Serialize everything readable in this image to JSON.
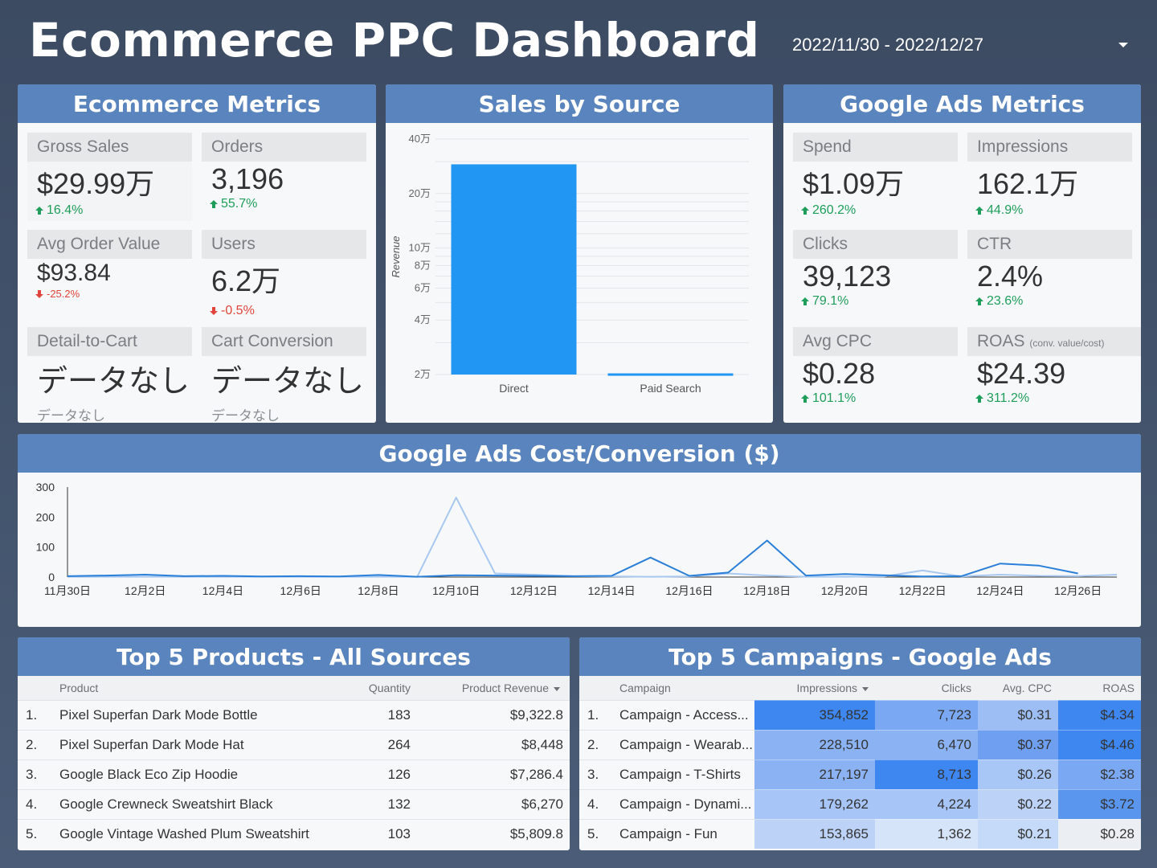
{
  "header": {
    "title": "Ecommerce PPC Dashboard",
    "date_range": "2022/11/30 - 2022/12/27"
  },
  "ecommerce": {
    "title": "Ecommerce Metrics",
    "gross_sales": {
      "label": "Gross Sales",
      "value": "$29.99万",
      "delta": "16.4%",
      "trend": "up"
    },
    "orders": {
      "label": "Orders",
      "value": "3,196",
      "delta": "55.7%",
      "trend": "up"
    },
    "aov": {
      "label": "Avg Order Value",
      "value": "$93.84",
      "delta": "-25.2%",
      "trend": "down"
    },
    "users": {
      "label": "Users",
      "value": "6.2万",
      "delta": "-0.5%",
      "trend": "down"
    },
    "detail_to_cart": {
      "label": "Detail-to-Cart",
      "value": "データなし",
      "sub": "データなし"
    },
    "cart_conversion": {
      "label": "Cart Conversion",
      "value": "データなし",
      "sub": "データなし"
    }
  },
  "sales_by_source": {
    "title": "Sales by Source"
  },
  "google_ads": {
    "title": "Google Ads Metrics",
    "spend": {
      "label": "Spend",
      "value": "$1.09万",
      "delta": "260.2%",
      "trend": "up"
    },
    "impressions": {
      "label": "Impressions",
      "value": "162.1万",
      "delta": "44.9%",
      "trend": "up"
    },
    "clicks": {
      "label": "Clicks",
      "value": "39,123",
      "delta": "79.1%",
      "trend": "up"
    },
    "ctr": {
      "label": "CTR",
      "value": "2.4%",
      "delta": "23.6%",
      "trend": "up"
    },
    "avg_cpc": {
      "label": "Avg CPC",
      "value": "$0.28",
      "delta": "101.1%",
      "trend": "up"
    },
    "roas": {
      "label": "ROAS",
      "label_note": "(conv. value/cost)",
      "value": "$24.39",
      "delta": "311.2%",
      "trend": "up"
    }
  },
  "cost_conversion": {
    "title": "Google Ads  Cost/Conversion ($)"
  },
  "top_products": {
    "title": "Top 5 Products - All Sources",
    "columns": [
      "Product",
      "Quantity",
      "Product Revenue"
    ],
    "rows": [
      {
        "idx": "1.",
        "name": "Pixel Superfan Dark Mode Bottle",
        "qty": "183",
        "rev": "$9,322.8"
      },
      {
        "idx": "2.",
        "name": "Pixel Superfan Dark Mode Hat",
        "qty": "264",
        "rev": "$8,448"
      },
      {
        "idx": "3.",
        "name": "Google Black Eco Zip Hoodie",
        "qty": "126",
        "rev": "$7,286.4"
      },
      {
        "idx": "4.",
        "name": "Google Crewneck Sweatshirt Black",
        "qty": "132",
        "rev": "$6,270"
      },
      {
        "idx": "5.",
        "name": "Google Vintage Washed Plum Sweatshirt",
        "qty": "103",
        "rev": "$5,809.8"
      }
    ]
  },
  "top_campaigns": {
    "title": "Top 5 Campaigns - Google Ads",
    "columns": [
      "Campaign",
      "Impressions",
      "Clicks",
      "Avg. CPC",
      "ROAS"
    ],
    "rows": [
      {
        "idx": "1.",
        "name": "Campaign - Access...",
        "imp": "354,852",
        "clicks": "7,723",
        "cpc": "$0.31",
        "roas": "$4.34"
      },
      {
        "idx": "2.",
        "name": "Campaign - Wearab...",
        "imp": "228,510",
        "clicks": "6,470",
        "cpc": "$0.37",
        "roas": "$4.46"
      },
      {
        "idx": "3.",
        "name": "Campaign - T-Shirts",
        "imp": "217,197",
        "clicks": "8,713",
        "cpc": "$0.26",
        "roas": "$2.38"
      },
      {
        "idx": "4.",
        "name": "Campaign - Dynami...",
        "imp": "179,262",
        "clicks": "4,224",
        "cpc": "$0.22",
        "roas": "$3.72"
      },
      {
        "idx": "5.",
        "name": "Campaign - Fun",
        "imp": "153,865",
        "clicks": "1,362",
        "cpc": "$0.21",
        "roas": "$0.28"
      }
    ],
    "heat_colors": {
      "imp": [
        "#3e86f0",
        "#8bb3f3",
        "#8bb3f3",
        "#a7c5f6",
        "#bcd3f7"
      ],
      "clicks": [
        "#7aa8f2",
        "#8bb3f3",
        "#3e86f0",
        "#a7c5f6",
        "#d6e4fa"
      ],
      "cpc": [
        "#9dbef5",
        "#6f9ff1",
        "#a8c6f6",
        "#bcd3f7",
        "#c5d9f8"
      ],
      "roas": [
        "#3e86f0",
        "#3e86f0",
        "#7aa8f2",
        "#5a95ee",
        "#ebeef2"
      ]
    }
  },
  "chart_data": [
    {
      "type": "bar",
      "title": "Sales by Source",
      "categories": [
        "Direct",
        "Paid Search"
      ],
      "values": [
        290000,
        20300
      ],
      "ylabel": "Revenue",
      "yscale": "log",
      "ylim": [
        20000,
        400000
      ],
      "ytick_labels": [
        "2万",
        "4万",
        "6万",
        "8万",
        "10万",
        "20万",
        "40万"
      ],
      "ytick_values": [
        20000,
        40000,
        60000,
        80000,
        100000,
        200000,
        400000
      ],
      "grid": true,
      "color": "#2196f3"
    },
    {
      "type": "line",
      "title": "Google Ads  Cost/Conversion ($)",
      "x": [
        "11月30日",
        "12月1日",
        "12月2日",
        "12月3日",
        "12月4日",
        "12月5日",
        "12月6日",
        "12月7日",
        "12月8日",
        "12月9日",
        "12月10日",
        "12月11日",
        "12月12日",
        "12月13日",
        "12月14日",
        "12月15日",
        "12月16日",
        "12月17日",
        "12月18日",
        "12月19日",
        "12月20日",
        "12月21日",
        "12月22日",
        "12月23日",
        "12月24日",
        "12月25日",
        "12月26日",
        "12月27日"
      ],
      "xtick_labels": [
        "11月30日",
        "12月2日",
        "12月4日",
        "12月6日",
        "12月8日",
        "12月10日",
        "12月12日",
        "12月14日",
        "12月16日",
        "12月18日",
        "12月20日",
        "12月22日",
        "12月24日",
        "12月26日"
      ],
      "ylim": [
        0,
        300
      ],
      "yticks": [
        0,
        100,
        200,
        300
      ],
      "series": [
        {
          "color": "#2a7fd8",
          "values": [
            3,
            5,
            8,
            3,
            4,
            2,
            3,
            2,
            7,
            1,
            6,
            5,
            4,
            3,
            4,
            65,
            4,
            15,
            122,
            5,
            10,
            6,
            2,
            3,
            45,
            38,
            12,
            null
          ]
        },
        {
          "color": "#a8c8f0",
          "values": [
            1,
            1,
            1,
            1,
            1,
            1,
            1,
            1,
            1,
            1,
            265,
            12,
            8,
            3,
            2,
            1,
            2,
            12,
            5,
            1,
            1,
            2,
            22,
            2,
            8,
            4,
            3,
            8
          ]
        }
      ]
    }
  ]
}
